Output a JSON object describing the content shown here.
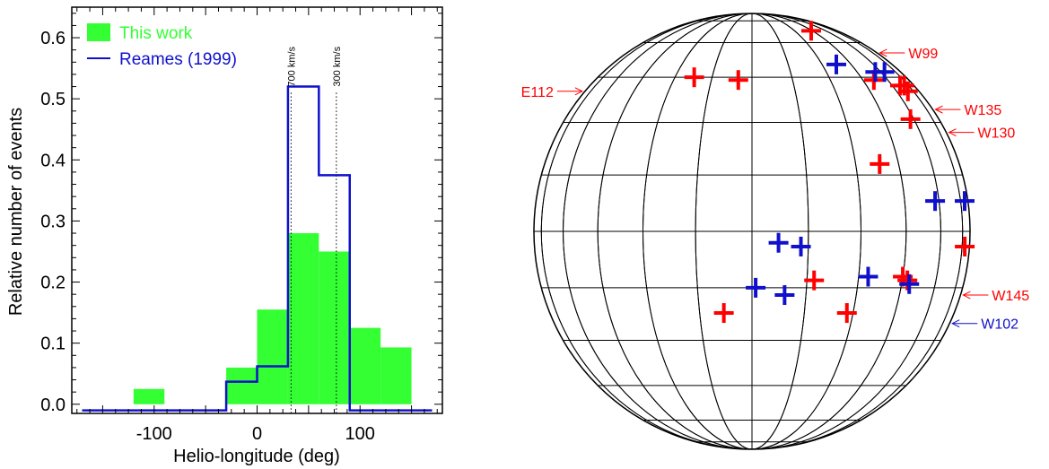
{
  "chart_data": [
    {
      "type": "bar",
      "xlabel": "Helio-longitude (deg)",
      "ylabel": "Relative number of events",
      "xlim": [
        -180,
        180
      ],
      "ylim": [
        -0.015,
        0.65
      ],
      "x_ticks": [
        -100,
        0,
        100
      ],
      "y_ticks": [
        0.0,
        0.1,
        0.2,
        0.3,
        0.4,
        0.5,
        0.6
      ],
      "y_tick_labels": [
        "0.0",
        "0.1",
        "0.2",
        "0.3",
        "0.4",
        "0.5",
        "0.6"
      ],
      "legend": {
        "placement": "top-left",
        "entries": [
          "This work",
          "Reames (1999)"
        ]
      },
      "colors": {
        "this_work": "#33ff33",
        "reames": "#1010cc"
      },
      "series": [
        {
          "name": "This work",
          "style": "filled-bars",
          "bins": [
            {
              "x0": -120,
              "x1": -90,
              "value": 0.025
            },
            {
              "x0": -30,
              "x1": 0,
              "value": 0.06
            },
            {
              "x0": 0,
              "x1": 30,
              "value": 0.155
            },
            {
              "x0": 30,
              "x1": 60,
              "value": 0.28
            },
            {
              "x0": 60,
              "x1": 90,
              "value": 0.25
            },
            {
              "x0": 90,
              "x1": 120,
              "value": 0.125
            },
            {
              "x0": 120,
              "x1": 150,
              "value": 0.093
            }
          ]
        },
        {
          "name": "Reames (1999)",
          "style": "step-outline",
          "bins": [
            {
              "x0": -170,
              "x1": -30,
              "value": -0.01
            },
            {
              "x0": -30,
              "x1": 0,
              "value": 0.037
            },
            {
              "x0": 0,
              "x1": 30,
              "value": 0.062
            },
            {
              "x0": 30,
              "x1": 60,
              "value": 0.52
            },
            {
              "x0": 60,
              "x1": 90,
              "value": 0.375
            },
            {
              "x0": 90,
              "x1": 170,
              "value": -0.01
            }
          ]
        }
      ],
      "annotations": [
        {
          "x": 33,
          "label": "700 km/s"
        },
        {
          "x": 77,
          "label": "300 km/s"
        }
      ]
    },
    {
      "type": "scatter",
      "projection": "orthographic-disk",
      "grid_step_deg": 15,
      "colors": {
        "this_work": "#ff0000",
        "reames": "#1010cc"
      },
      "series": [
        {
          "name": "This work",
          "points": [
            {
              "lon": -5,
              "lat": 44
            },
            {
              "lon": -22,
              "lat": 45
            },
            {
              "lon": 44,
              "lat": 67
            },
            {
              "lon": 51,
              "lat": 44
            },
            {
              "lon": 66,
              "lat": 42
            },
            {
              "lon": 69,
              "lat": 40
            },
            {
              "lon": 58,
              "lat": 31
            },
            {
              "lon": 38,
              "lat": 18
            },
            {
              "lon": 78,
              "lat": -4
            },
            {
              "lon": 17,
              "lat": -13
            },
            {
              "lon": 47,
              "lat": -13
            },
            {
              "lon": 45,
              "lat": -12
            },
            {
              "lon": -8,
              "lat": -22
            },
            {
              "lon": 28,
              "lat": -22
            },
            {
              "lon": 70,
              "lat": 42
            }
          ]
        },
        {
          "name": "Reames (1999)",
          "points": [
            {
              "lon": 37,
              "lat": 50
            },
            {
              "lon": 56,
              "lat": 47
            },
            {
              "lon": 63,
              "lat": 47
            },
            {
              "lon": 58,
              "lat": 8
            },
            {
              "lon": 80,
              "lat": 8
            },
            {
              "lon": 13,
              "lat": -4
            },
            {
              "lon": 7,
              "lat": -3
            },
            {
              "lon": 1,
              "lat": -15
            },
            {
              "lon": 33,
              "lat": -12
            },
            {
              "lon": 9,
              "lat": -17
            },
            {
              "lon": 48,
              "lat": -14
            }
          ]
        }
      ],
      "limb_labels": [
        {
          "text": "W99",
          "series": "This work",
          "side": "right",
          "lat": 55
        },
        {
          "text": "E112",
          "series": "This work",
          "side": "left",
          "lat": 40
        },
        {
          "text": "W135",
          "series": "This work",
          "side": "right",
          "lat": 34
        },
        {
          "text": "W130",
          "series": "This work",
          "side": "right",
          "lat": 27
        },
        {
          "text": "W145",
          "series": "This work",
          "side": "right",
          "lat": -17
        },
        {
          "text": "W102",
          "series": "Reames (1999)",
          "side": "right",
          "lat": -25
        }
      ]
    }
  ]
}
